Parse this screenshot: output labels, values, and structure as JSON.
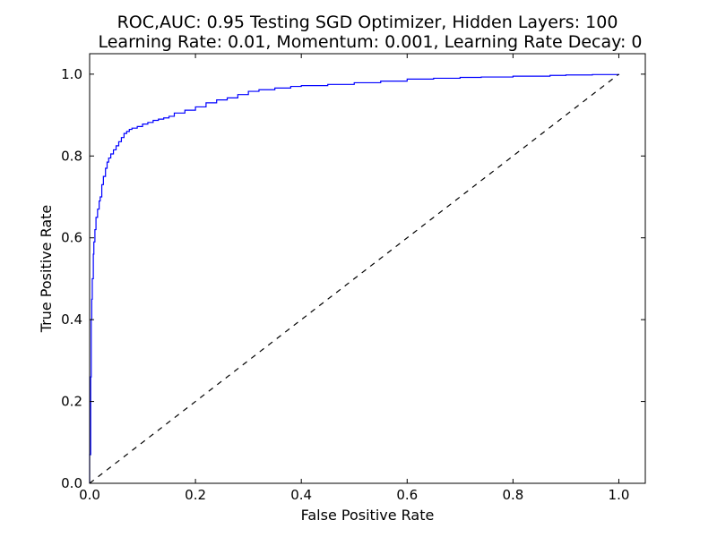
{
  "chart_data": {
    "type": "line",
    "title_lines": [
      "ROC,AUC: 0.95 Testing SGD Optimizer, Hidden Layers: 100",
      "Learning Rate: 0.01, Momentum: 0.001, Learning Rate Decay: 0"
    ],
    "xlabel": "False Positive Rate",
    "ylabel": "True Positive Rate",
    "xlim": [
      0.0,
      1.05
    ],
    "ylim": [
      0.0,
      1.05
    ],
    "xticks": [
      0.0,
      0.2,
      0.4,
      0.6,
      0.8,
      1.0
    ],
    "yticks": [
      0.0,
      0.2,
      0.4,
      0.6,
      0.8,
      1.0
    ],
    "xtick_labels": [
      "0.0",
      "0.2",
      "0.4",
      "0.6",
      "0.8",
      "1.0"
    ],
    "ytick_labels": [
      "0.0",
      "0.2",
      "0.4",
      "0.6",
      "0.8",
      "1.0"
    ],
    "grid": false,
    "series": [
      {
        "style": "solid",
        "color": "#0000ff",
        "x": [
          0.0,
          0.0,
          0.002,
          0.003,
          0.004,
          0.005,
          0.007,
          0.008,
          0.01,
          0.012,
          0.015,
          0.018,
          0.02,
          0.023,
          0.026,
          0.03,
          0.033,
          0.036,
          0.04,
          0.045,
          0.05,
          0.055,
          0.06,
          0.065,
          0.07,
          0.075,
          0.08,
          0.09,
          0.1,
          0.11,
          0.12,
          0.13,
          0.14,
          0.15,
          0.16,
          0.18,
          0.2,
          0.22,
          0.24,
          0.26,
          0.28,
          0.3,
          0.32,
          0.35,
          0.38,
          0.4,
          0.45,
          0.5,
          0.55,
          0.6,
          0.65,
          0.7,
          0.74,
          0.8,
          0.87,
          0.9,
          0.95,
          1.0
        ],
        "y": [
          0.0,
          0.07,
          0.26,
          0.4,
          0.45,
          0.5,
          0.56,
          0.59,
          0.62,
          0.65,
          0.67,
          0.69,
          0.7,
          0.73,
          0.75,
          0.77,
          0.785,
          0.795,
          0.805,
          0.815,
          0.825,
          0.835,
          0.845,
          0.855,
          0.86,
          0.865,
          0.868,
          0.872,
          0.878,
          0.882,
          0.887,
          0.89,
          0.893,
          0.897,
          0.905,
          0.912,
          0.92,
          0.93,
          0.937,
          0.942,
          0.95,
          0.958,
          0.962,
          0.966,
          0.97,
          0.972,
          0.975,
          0.979,
          0.983,
          0.988,
          0.99,
          0.992,
          0.993,
          0.995,
          0.997,
          0.998,
          0.999,
          1.0
        ]
      },
      {
        "style": "dashed",
        "color": "#000000",
        "x": [
          0.0,
          1.0
        ],
        "y": [
          0.0,
          1.0
        ]
      }
    ]
  }
}
